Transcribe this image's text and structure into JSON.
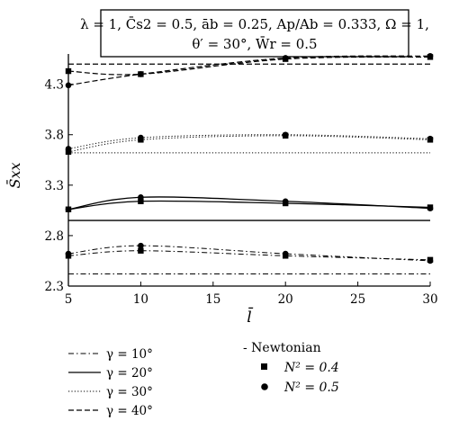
{
  "chart_data": {
    "type": "line",
    "params_box": {
      "line1": "λ = 1, C̄s2 = 0.5, āb = 0.25, Ap/Ab = 0.333, Ω = 1,",
      "line2": "θ′ = 30°, W̄r = 0.5"
    },
    "xlabel": "l̄",
    "ylabel": "S̄xx",
    "xlim": [
      5,
      30
    ],
    "ylim": [
      2.3,
      4.6
    ],
    "x_ticks": [
      "5",
      "10",
      "15",
      "20",
      "25",
      "30"
    ],
    "y_ticks": [
      "2.3",
      "2.8",
      "3.3",
      "3.8",
      "4.3"
    ],
    "x_tick_values": [
      5,
      10,
      15,
      20,
      25,
      30
    ],
    "y_tick_values": [
      2.3,
      2.8,
      3.3,
      3.8,
      4.3
    ],
    "x": [
      5,
      10,
      20,
      30
    ],
    "groups": [
      {
        "name": "γ = 10°",
        "dash": "dashdot",
        "newtonian": 2.42,
        "n04": [
          2.6,
          2.65,
          2.6,
          2.56
        ],
        "n05": [
          2.62,
          2.7,
          2.62,
          2.55
        ]
      },
      {
        "name": "γ = 20°",
        "dash": "solid",
        "newtonian": 2.95,
        "n04": [
          3.06,
          3.14,
          3.12,
          3.08
        ],
        "n05": [
          3.06,
          3.18,
          3.14,
          3.07
        ]
      },
      {
        "name": "γ = 30°",
        "dash": "dotted",
        "newtonian": 3.62,
        "n04": [
          3.63,
          3.75,
          3.79,
          3.75
        ],
        "n05": [
          3.66,
          3.77,
          3.8,
          3.76
        ]
      },
      {
        "name": "γ = 40°",
        "dash": "dashed",
        "newtonian": 4.5,
        "n04": [
          4.43,
          4.4,
          4.55,
          4.57
        ],
        "n05": [
          4.29,
          4.4,
          4.56,
          4.58
        ]
      }
    ],
    "legend": {
      "lines": [
        "γ = 10°",
        "γ = 20°",
        "γ = 30°",
        "γ = 40°"
      ],
      "newtonian": "- Newtonian",
      "n04": "N² = 0.4",
      "n05": "N² = 0.5"
    },
    "grid": false
  }
}
